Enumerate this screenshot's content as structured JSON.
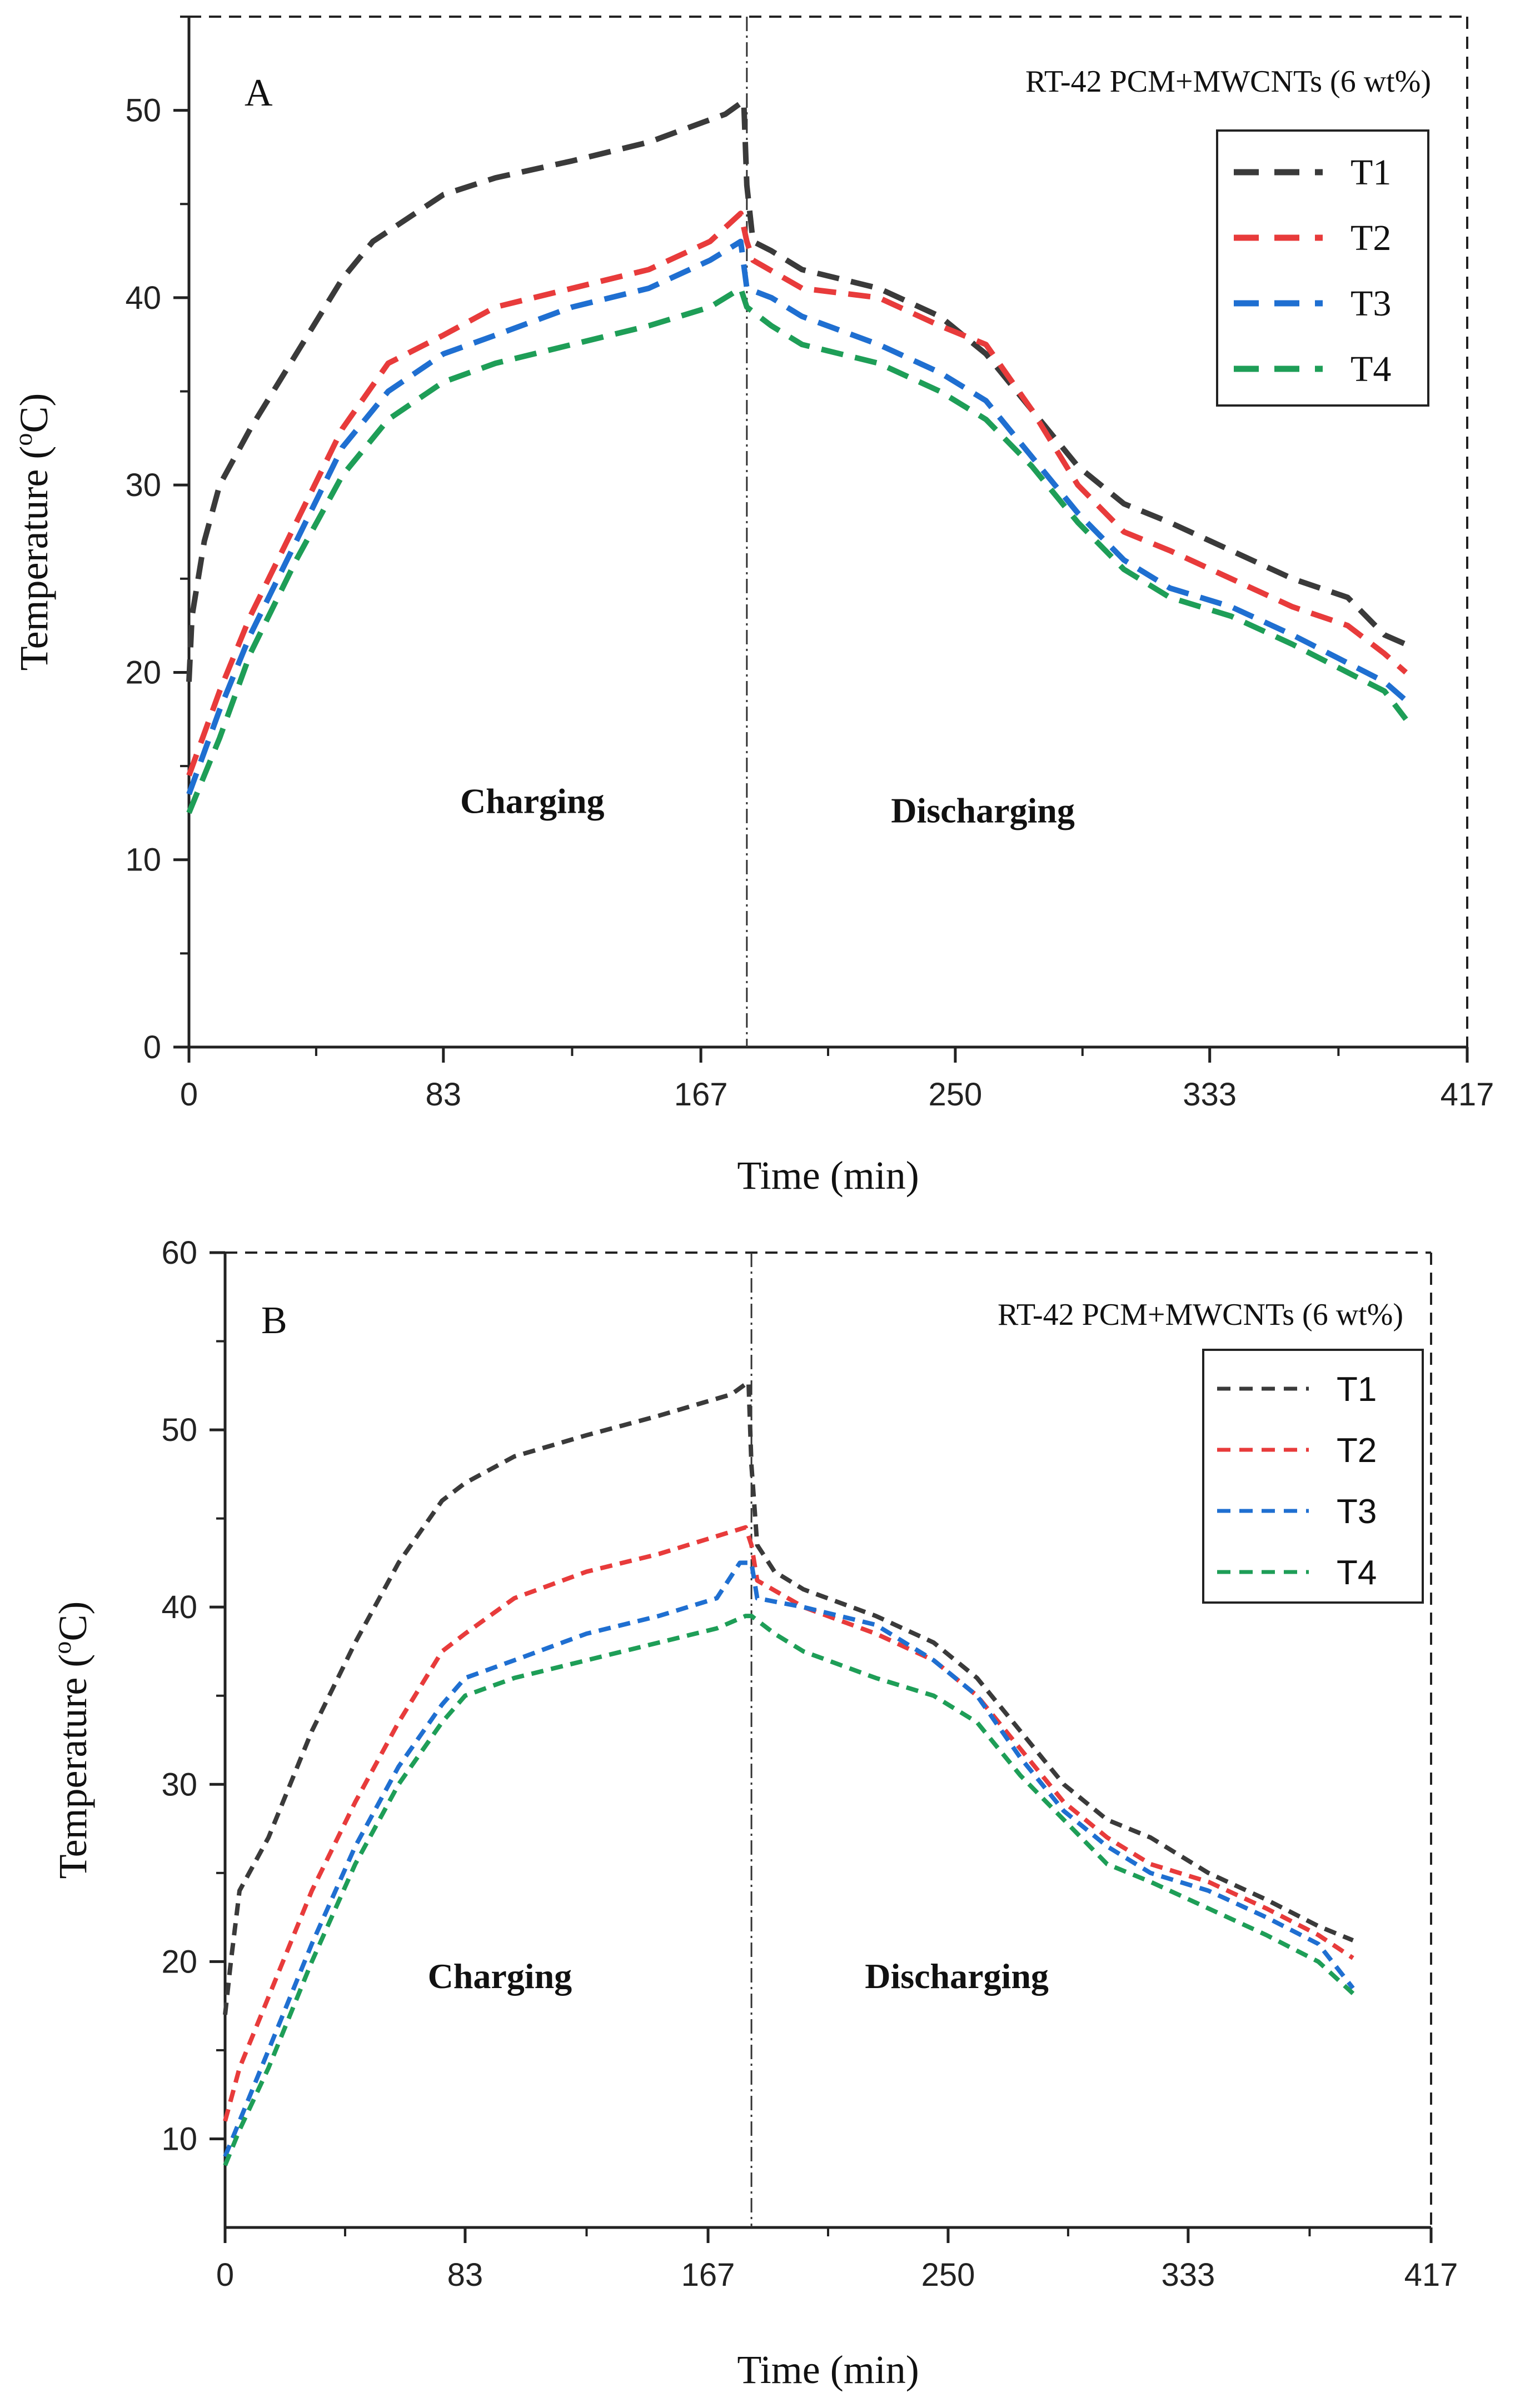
{
  "chart_data": [
    {
      "type": "line",
      "panel": "A",
      "subtitle": "RT-42 PCM+MWCNTs (6 wt%)",
      "xlabel": "Time (min)",
      "ylabel_main": "Temperature (",
      "ylabel_sup": "o",
      "ylabel_end": "C)",
      "xlim": [
        0,
        417
      ],
      "ylim": [
        0,
        55
      ],
      "xticks": [
        0,
        83,
        167,
        250,
        333,
        417
      ],
      "yticks": [
        0,
        10,
        20,
        30,
        40,
        50
      ],
      "divider_x": 182,
      "annotations": [
        {
          "text": "Charging",
          "x": 112,
          "y": 12.5
        },
        {
          "text": "Discharging",
          "x": 259,
          "y": 12
        }
      ],
      "legend": [
        "T1",
        "T2",
        "T3",
        "T4"
      ],
      "series": [
        {
          "name": "T1",
          "color": "#3a3a3a",
          "points": [
            [
              0,
              19.5
            ],
            [
              1,
              23
            ],
            [
              5,
              27
            ],
            [
              10,
              30
            ],
            [
              20,
              33
            ],
            [
              35,
              37
            ],
            [
              50,
              41
            ],
            [
              60,
              43
            ],
            [
              83,
              45.5
            ],
            [
              100,
              46.4
            ],
            [
              125,
              47.3
            ],
            [
              150,
              48.3
            ],
            [
              175,
              49.8
            ],
            [
              181,
              50.5
            ],
            [
              182,
              46
            ],
            [
              184,
              43
            ],
            [
              190,
              42.5
            ],
            [
              200,
              41.5
            ],
            [
              225,
              40.5
            ],
            [
              245,
              39
            ],
            [
              260,
              37
            ],
            [
              275,
              34
            ],
            [
              290,
              31
            ],
            [
              305,
              29
            ],
            [
              320,
              28
            ],
            [
              340,
              26.5
            ],
            [
              360,
              25
            ],
            [
              378,
              24
            ],
            [
              390,
              22
            ],
            [
              397,
              21.5
            ]
          ]
        },
        {
          "name": "T2",
          "color": "#e83b3b",
          "points": [
            [
              0,
              14.5
            ],
            [
              10,
              19
            ],
            [
              20,
              23
            ],
            [
              35,
              28
            ],
            [
              50,
              33
            ],
            [
              65,
              36.5
            ],
            [
              83,
              38
            ],
            [
              100,
              39.5
            ],
            [
              125,
              40.5
            ],
            [
              150,
              41.5
            ],
            [
              170,
              43
            ],
            [
              180,
              44.5
            ],
            [
              182,
              43
            ],
            [
              184,
              42
            ],
            [
              200,
              40.5
            ],
            [
              225,
              40
            ],
            [
              245,
              38.5
            ],
            [
              260,
              37.5
            ],
            [
              275,
              34
            ],
            [
              290,
              30
            ],
            [
              305,
              27.5
            ],
            [
              320,
              26.5
            ],
            [
              340,
              25
            ],
            [
              360,
              23.5
            ],
            [
              378,
              22.5
            ],
            [
              390,
              21
            ],
            [
              397,
              20
            ]
          ]
        },
        {
          "name": "T3",
          "color": "#1f6fd1",
          "points": [
            [
              0,
              13.5
            ],
            [
              10,
              18
            ],
            [
              20,
              22
            ],
            [
              35,
              27
            ],
            [
              50,
              32
            ],
            [
              65,
              35
            ],
            [
              83,
              37
            ],
            [
              100,
              38
            ],
            [
              125,
              39.5
            ],
            [
              150,
              40.5
            ],
            [
              170,
              42
            ],
            [
              180,
              43
            ],
            [
              182,
              40.5
            ],
            [
              190,
              40
            ],
            [
              200,
              39
            ],
            [
              225,
              37.5
            ],
            [
              245,
              36
            ],
            [
              260,
              34.5
            ],
            [
              275,
              31.5
            ],
            [
              290,
              28.5
            ],
            [
              305,
              26
            ],
            [
              320,
              24.5
            ],
            [
              340,
              23.5
            ],
            [
              360,
              22
            ],
            [
              378,
              20.5
            ],
            [
              390,
              19.5
            ],
            [
              397,
              18.5
            ]
          ]
        },
        {
          "name": "T4",
          "color": "#1e9e57",
          "points": [
            [
              0,
              12.5
            ],
            [
              10,
              16.5
            ],
            [
              20,
              21
            ],
            [
              35,
              26
            ],
            [
              50,
              30.5
            ],
            [
              65,
              33.5
            ],
            [
              83,
              35.5
            ],
            [
              100,
              36.5
            ],
            [
              125,
              37.5
            ],
            [
              150,
              38.5
            ],
            [
              170,
              39.5
            ],
            [
              180,
              40.5
            ],
            [
              182,
              39.5
            ],
            [
              190,
              38.5
            ],
            [
              200,
              37.5
            ],
            [
              225,
              36.5
            ],
            [
              245,
              35
            ],
            [
              260,
              33.5
            ],
            [
              275,
              31
            ],
            [
              290,
              28
            ],
            [
              305,
              25.5
            ],
            [
              320,
              24
            ],
            [
              340,
              23
            ],
            [
              360,
              21.5
            ],
            [
              378,
              20
            ],
            [
              390,
              19
            ],
            [
              397,
              17.5
            ]
          ]
        }
      ]
    },
    {
      "type": "line",
      "panel": "B",
      "subtitle": "RT-42 PCM+MWCNTs (6 wt%)",
      "xlabel": "Time (min)",
      "ylabel_main": "Temperature (",
      "ylabel_sup": "o",
      "ylabel_end": "C)",
      "xlim": [
        0,
        417
      ],
      "ylim": [
        5,
        60
      ],
      "xticks": [
        0,
        83,
        167,
        250,
        333,
        417
      ],
      "yticks": [
        10,
        20,
        30,
        40,
        50,
        60
      ],
      "divider_x": 182,
      "annotations": [
        {
          "text": "Charging",
          "x": 95,
          "y": 18.5
        },
        {
          "text": "Discharging",
          "x": 253,
          "y": 18.5
        }
      ],
      "legend": [
        "T1",
        "T2",
        "T3",
        "T4"
      ],
      "series": [
        {
          "name": "T1",
          "color": "#3a3a3a",
          "points": [
            [
              0,
              17
            ],
            [
              2,
              20
            ],
            [
              5,
              24
            ],
            [
              15,
              27
            ],
            [
              30,
              33
            ],
            [
              45,
              38
            ],
            [
              60,
              42.5
            ],
            [
              75,
              46
            ],
            [
              83,
              47
            ],
            [
              100,
              48.5
            ],
            [
              125,
              49.7
            ],
            [
              150,
              50.8
            ],
            [
              175,
              52
            ],
            [
              181,
              52.7
            ],
            [
              182,
              48
            ],
            [
              184,
              43.5
            ],
            [
              190,
              42
            ],
            [
              200,
              41
            ],
            [
              225,
              39.5
            ],
            [
              245,
              38
            ],
            [
              260,
              36
            ],
            [
              275,
              33
            ],
            [
              290,
              30
            ],
            [
              305,
              28
            ],
            [
              320,
              27
            ],
            [
              340,
              25
            ],
            [
              360,
              23.5
            ],
            [
              378,
              22
            ],
            [
              390,
              21.2
            ]
          ]
        },
        {
          "name": "T2",
          "color": "#e83b3b",
          "points": [
            [
              0,
              11
            ],
            [
              5,
              14
            ],
            [
              15,
              18
            ],
            [
              30,
              24
            ],
            [
              45,
              29
            ],
            [
              60,
              33.5
            ],
            [
              75,
              37.5
            ],
            [
              83,
              38.5
            ],
            [
              100,
              40.5
            ],
            [
              125,
              42
            ],
            [
              150,
              43
            ],
            [
              170,
              44
            ],
            [
              180,
              44.5
            ],
            [
              182,
              43.5
            ],
            [
              184,
              41.5
            ],
            [
              200,
              40
            ],
            [
              225,
              38.5
            ],
            [
              245,
              37
            ],
            [
              260,
              35
            ],
            [
              275,
              32
            ],
            [
              290,
              29
            ],
            [
              305,
              27
            ],
            [
              320,
              25.5
            ],
            [
              340,
              24.5
            ],
            [
              360,
              23
            ],
            [
              378,
              21.5
            ],
            [
              390,
              20.2
            ]
          ]
        },
        {
          "name": "T3",
          "color": "#1f6fd1",
          "points": [
            [
              0,
              9
            ],
            [
              5,
              11
            ],
            [
              15,
              15
            ],
            [
              30,
              21
            ],
            [
              45,
              26.5
            ],
            [
              60,
              31
            ],
            [
              75,
              34.5
            ],
            [
              83,
              36
            ],
            [
              100,
              37
            ],
            [
              125,
              38.5
            ],
            [
              150,
              39.5
            ],
            [
              170,
              40.5
            ],
            [
              178,
              42.5
            ],
            [
              182,
              42.5
            ],
            [
              184,
              40.5
            ],
            [
              200,
              40
            ],
            [
              225,
              39
            ],
            [
              245,
              37
            ],
            [
              260,
              35
            ],
            [
              275,
              31.5
            ],
            [
              290,
              28.5
            ],
            [
              305,
              26.5
            ],
            [
              320,
              25
            ],
            [
              340,
              24
            ],
            [
              360,
              22.5
            ],
            [
              378,
              21
            ],
            [
              390,
              18.5
            ]
          ]
        },
        {
          "name": "T4",
          "color": "#1e9e57",
          "points": [
            [
              0,
              8.5
            ],
            [
              5,
              10.5
            ],
            [
              15,
              14
            ],
            [
              30,
              20
            ],
            [
              45,
              25.5
            ],
            [
              60,
              30
            ],
            [
              75,
              33.5
            ],
            [
              83,
              35
            ],
            [
              100,
              36
            ],
            [
              125,
              37
            ],
            [
              150,
              38
            ],
            [
              170,
              38.8
            ],
            [
              180,
              39.5
            ],
            [
              182,
              39.5
            ],
            [
              190,
              38.5
            ],
            [
              200,
              37.5
            ],
            [
              225,
              36
            ],
            [
              245,
              35
            ],
            [
              260,
              33.5
            ],
            [
              275,
              30.5
            ],
            [
              290,
              28
            ],
            [
              305,
              25.5
            ],
            [
              320,
              24.5
            ],
            [
              340,
              23
            ],
            [
              360,
              21.5
            ],
            [
              378,
              20
            ],
            [
              390,
              18.2
            ]
          ]
        }
      ]
    }
  ]
}
